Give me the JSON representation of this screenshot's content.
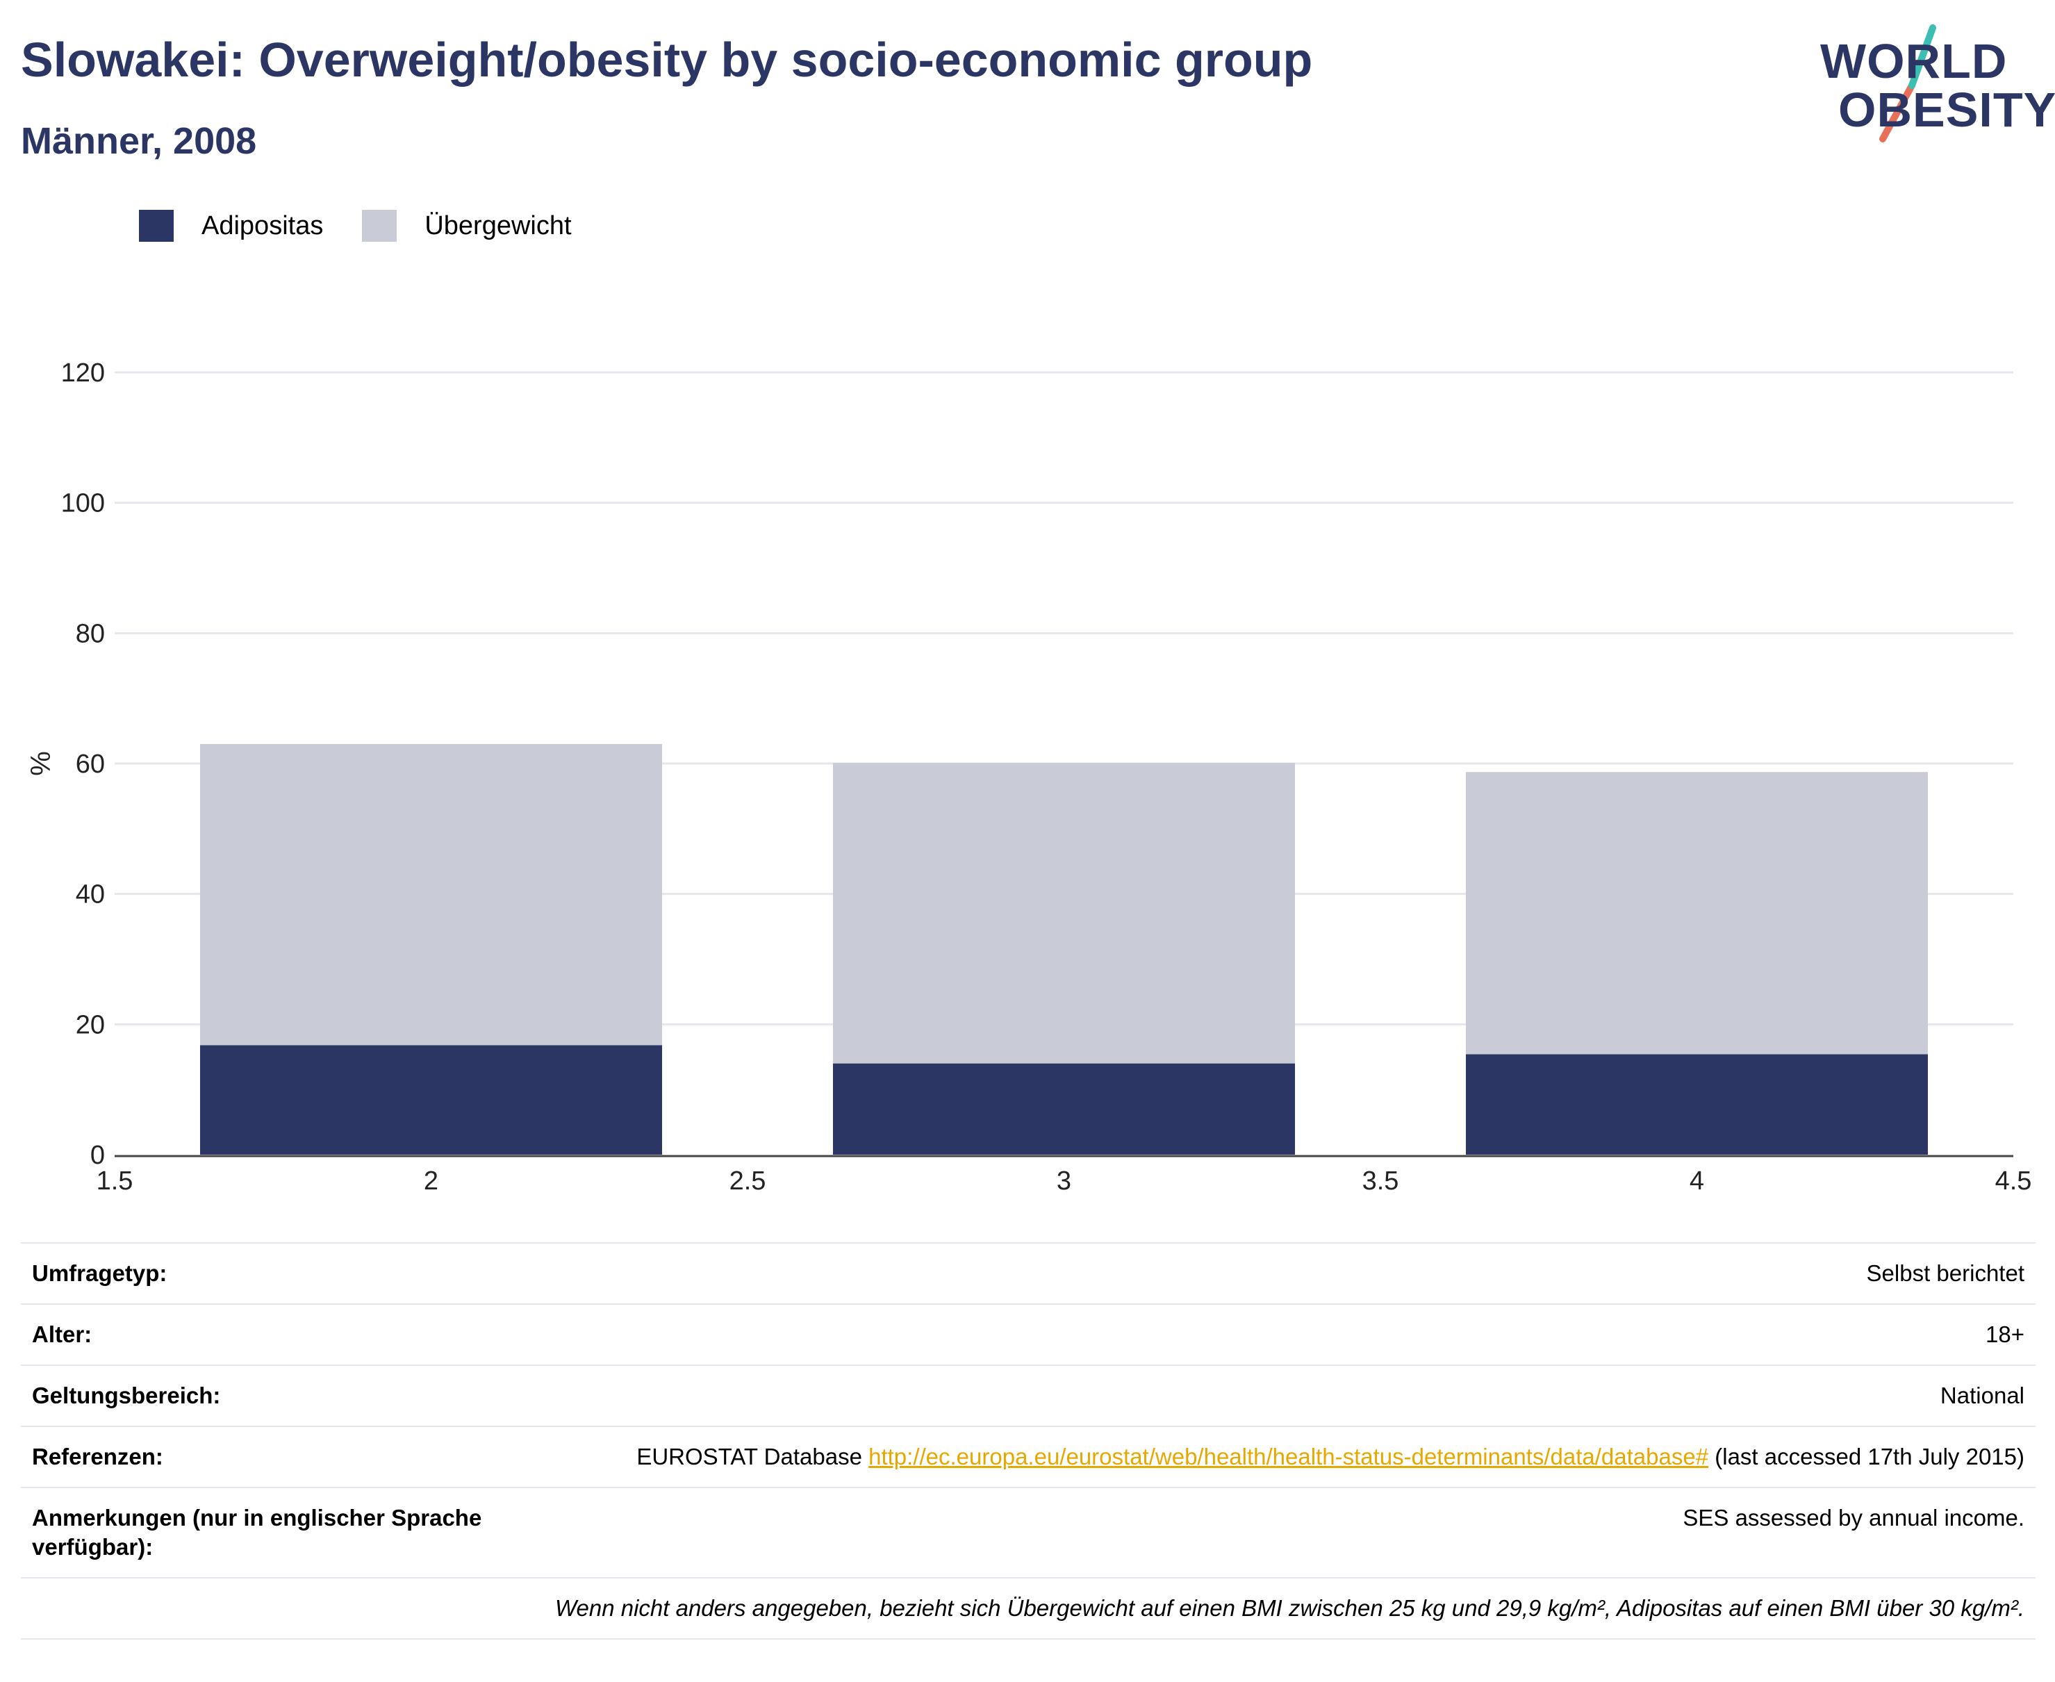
{
  "header": {
    "title": "Slowakei: Overweight/obesity by socio-economic group",
    "subtitle": "Männer, 2008"
  },
  "logo": {
    "line1": "WORLD",
    "line2": "OBESITY",
    "text_color": "#2b3664",
    "slash_top": "#3bbfb3",
    "slash_bottom": "#e8705a"
  },
  "legend": {
    "items": [
      {
        "label": "Adipositas",
        "color": "#2b3664"
      },
      {
        "label": "Übergewicht",
        "color": "#c9ccd6"
      }
    ]
  },
  "chart_data": {
    "type": "bar",
    "stacked": true,
    "x": [
      2,
      3,
      4
    ],
    "series": [
      {
        "name": "Adipositas",
        "color": "#2b3664",
        "values": [
          16.8,
          14.0,
          15.4
        ]
      },
      {
        "name": "Übergewicht",
        "color": "#c9ccd6",
        "values": [
          46.2,
          46.1,
          43.3
        ]
      }
    ],
    "xlim": [
      1.5,
      4.5
    ],
    "xticks": [
      1.5,
      2,
      2.5,
      3,
      3.5,
      4,
      4.5
    ],
    "xtick_labels": [
      "1.5",
      "2",
      "2.5",
      "3",
      "3.5",
      "4",
      "4.5"
    ],
    "ylim": [
      0,
      120
    ],
    "yticks": [
      0,
      20,
      40,
      60,
      80,
      100,
      120
    ],
    "ytick_labels": [
      "0",
      "20",
      "40",
      "60",
      "80",
      "100",
      "120"
    ],
    "ylabel": "%",
    "xlabel": "",
    "grid": true,
    "legend_position": "top-left"
  },
  "meta": {
    "rows": [
      {
        "key": "Umfragetyp:",
        "value": "Selbst berichtet"
      },
      {
        "key": "Alter:",
        "value": "18+"
      },
      {
        "key": "Geltungsbereich:",
        "value": "National"
      },
      {
        "key": "Referenzen:",
        "value_prefix": "EUROSTAT Database ",
        "link": "http://ec.europa.eu/eurostat/web/health/health-status-determinants/data/database#",
        "value_suffix": " (last accessed 17th July 2015)"
      },
      {
        "key": "Anmerkungen (nur in englischer Sprache verfügbar):",
        "value": "SES assessed by annual income."
      }
    ],
    "note": "Wenn nicht anders angegeben, bezieht sich Übergewicht auf einen BMI zwischen 25 kg und 29,9 kg/m², Adipositas auf einen BMI über 30 kg/m²."
  }
}
